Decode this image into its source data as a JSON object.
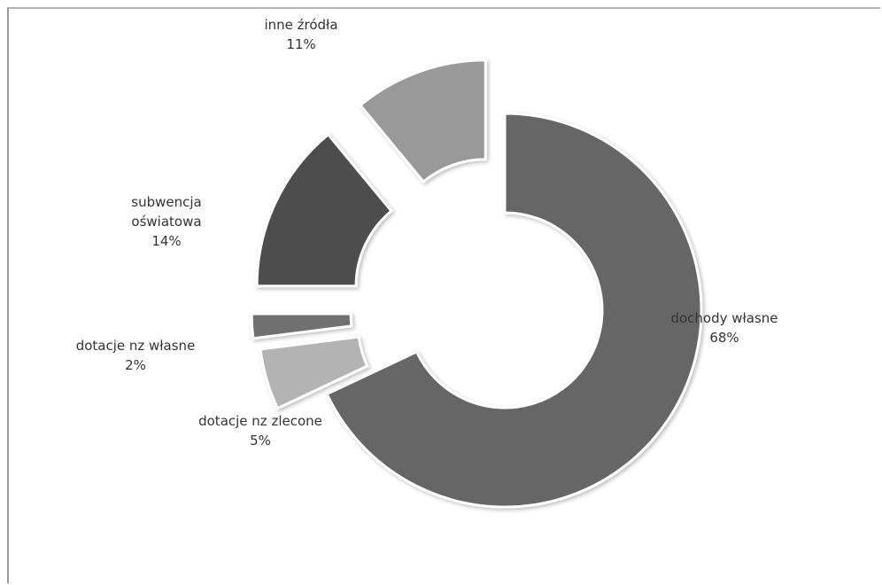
{
  "chart_data": {
    "type": "pie",
    "variant": "doughnut-exploded",
    "title": "",
    "slices": [
      {
        "label": "dochody własne",
        "value": 68,
        "value_label": "68%",
        "color": "#666666",
        "label_lines": [
          "dochody własne"
        ]
      },
      {
        "label": "dotacje nz zlecone",
        "value": 5,
        "value_label": "5%",
        "color": "#b3b3b3",
        "label_lines": [
          "dotacje nz zlecone"
        ]
      },
      {
        "label": "dotacje nz własne",
        "value": 2,
        "value_label": "2%",
        "color": "#707070",
        "label_lines": [
          "dotacje nz własne"
        ]
      },
      {
        "label": "subwencja oświatowa",
        "value": 14,
        "value_label": "14%",
        "color": "#4d4d4d",
        "label_lines": [
          "subwencja",
          "oświatowa"
        ]
      },
      {
        "label": "inne źródła",
        "value": 11,
        "value_label": "11%",
        "color": "#999999",
        "label_lines": [
          "inne źródła"
        ]
      }
    ],
    "legend": "none",
    "data_labels": "category-and-percent"
  }
}
